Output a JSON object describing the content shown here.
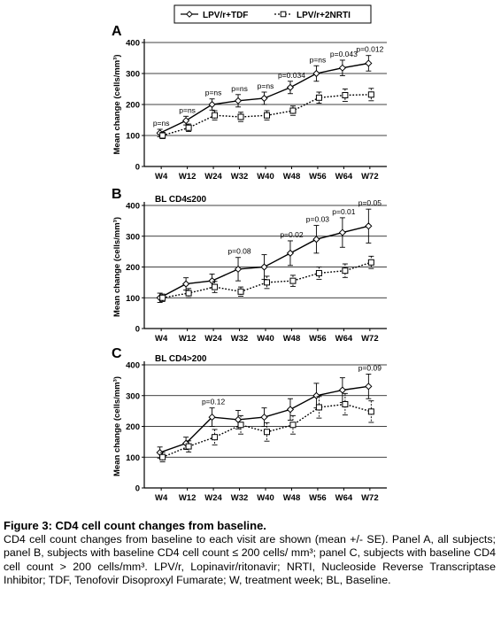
{
  "legend": {
    "series": [
      {
        "name": "LPV/r+TDF",
        "style": "solid",
        "marker": "diamond"
      },
      {
        "name": "LPV/r+2NRTI",
        "style": "dotted",
        "marker": "square"
      }
    ]
  },
  "chart_data": [
    {
      "type": "line",
      "panel_letter": "A",
      "subtitle": "",
      "ylabel": "Mean change (cells/mm³)",
      "xlabel": "",
      "categories": [
        "W4",
        "W12",
        "W24",
        "W32",
        "W40",
        "W48",
        "W56",
        "W64",
        "W72"
      ],
      "ylim": [
        0,
        400
      ],
      "yticks": [
        0,
        100,
        200,
        300,
        400
      ],
      "grid": "horizontal at 100, 200, 300, 400",
      "series": [
        {
          "name": "LPV/r+TDF",
          "values": [
            108,
            148,
            200,
            212,
            220,
            255,
            300,
            318,
            333
          ],
          "errors": [
            12,
            14,
            18,
            20,
            20,
            20,
            25,
            25,
            25
          ]
        },
        {
          "name": "LPV/r+2NRTI",
          "values": [
            100,
            125,
            165,
            160,
            165,
            180,
            222,
            230,
            232
          ],
          "errors": [
            10,
            12,
            15,
            15,
            15,
            15,
            18,
            20,
            20
          ]
        }
      ],
      "annotations": [
        {
          "x": "W4",
          "text": "p=ns"
        },
        {
          "x": "W12",
          "text": "p=ns"
        },
        {
          "x": "W24",
          "text": "p=ns"
        },
        {
          "x": "W32",
          "text": "p=ns"
        },
        {
          "x": "W40",
          "text": "p=ns"
        },
        {
          "x": "W48",
          "text": "p=0.034"
        },
        {
          "x": "W56",
          "text": "p=ns"
        },
        {
          "x": "W64",
          "text": "p=0.043"
        },
        {
          "x": "W72",
          "text": "p=0.012"
        }
      ]
    },
    {
      "type": "line",
      "panel_letter": "B",
      "subtitle": "BL CD4≤200",
      "ylabel": "Mean change (cells/mm³)",
      "xlabel": "",
      "categories": [
        "W4",
        "W12",
        "W24",
        "W32",
        "W40",
        "W48",
        "W56",
        "W64",
        "W72"
      ],
      "ylim": [
        0,
        400
      ],
      "yticks": [
        0,
        100,
        200,
        300,
        400
      ],
      "grid": "horizontal at 100, 200, 300, 400",
      "series": [
        {
          "name": "LPV/r+TDF",
          "values": [
            100,
            145,
            155,
            193,
            200,
            245,
            290,
            312,
            333
          ],
          "errors": [
            15,
            20,
            22,
            38,
            40,
            40,
            45,
            48,
            55
          ]
        },
        {
          "name": "LPV/r+2NRTI",
          "values": [
            100,
            115,
            135,
            120,
            150,
            155,
            180,
            188,
            215
          ],
          "errors": [
            12,
            15,
            18,
            15,
            20,
            18,
            20,
            22,
            20
          ]
        }
      ],
      "annotations": [
        {
          "x": "W32",
          "text": "p=0.08"
        },
        {
          "x": "W48",
          "text": "p=0.02"
        },
        {
          "x": "W56",
          "text": "p=0.03"
        },
        {
          "x": "W64",
          "text": "p=0.01"
        },
        {
          "x": "W72",
          "text": "p=0.05"
        }
      ]
    },
    {
      "type": "line",
      "panel_letter": "C",
      "subtitle": "BL CD4>200",
      "ylabel": "Mean change (cells/mm³)",
      "xlabel": "",
      "categories": [
        "W4",
        "W12",
        "W24",
        "W32",
        "W40",
        "W48",
        "W56",
        "W64",
        "W72"
      ],
      "ylim": [
        0,
        400
      ],
      "yticks": [
        0,
        100,
        200,
        300,
        400
      ],
      "grid": "horizontal at 100, 200, 300, 400",
      "series": [
        {
          "name": "LPV/r+TDF",
          "values": [
            115,
            145,
            230,
            222,
            230,
            255,
            300,
            318,
            330
          ],
          "errors": [
            18,
            20,
            30,
            30,
            30,
            35,
            40,
            40,
            40
          ]
        },
        {
          "name": "LPV/r+2NRTI",
          "values": [
            100,
            135,
            165,
            205,
            182,
            205,
            262,
            272,
            248
          ],
          "errors": [
            15,
            18,
            25,
            30,
            30,
            30,
            35,
            35,
            35
          ]
        }
      ],
      "annotations": [
        {
          "x": "W24",
          "text": "p=0.12"
        },
        {
          "x": "W72",
          "text": "p=0.09"
        }
      ]
    }
  ],
  "caption": {
    "title": "Figure 3: CD4 cell count changes from baseline.",
    "body": "CD4 cell count changes from baseline to each visit are shown (mean +/- SE). Panel A, all subjects; panel B, subjects with baseline CD4 cell count ≤ 200 cells/ mm³; panel C, subjects with baseline CD4 cell count > 200 cells/mm³. LPV/r, Lopinavir/ritonavir; NRTI, Nucleoside Reverse Transcriptase Inhibitor; TDF, Tenofovir Disoproxyl Fumarate; W, treatment week;  BL, Baseline."
  }
}
